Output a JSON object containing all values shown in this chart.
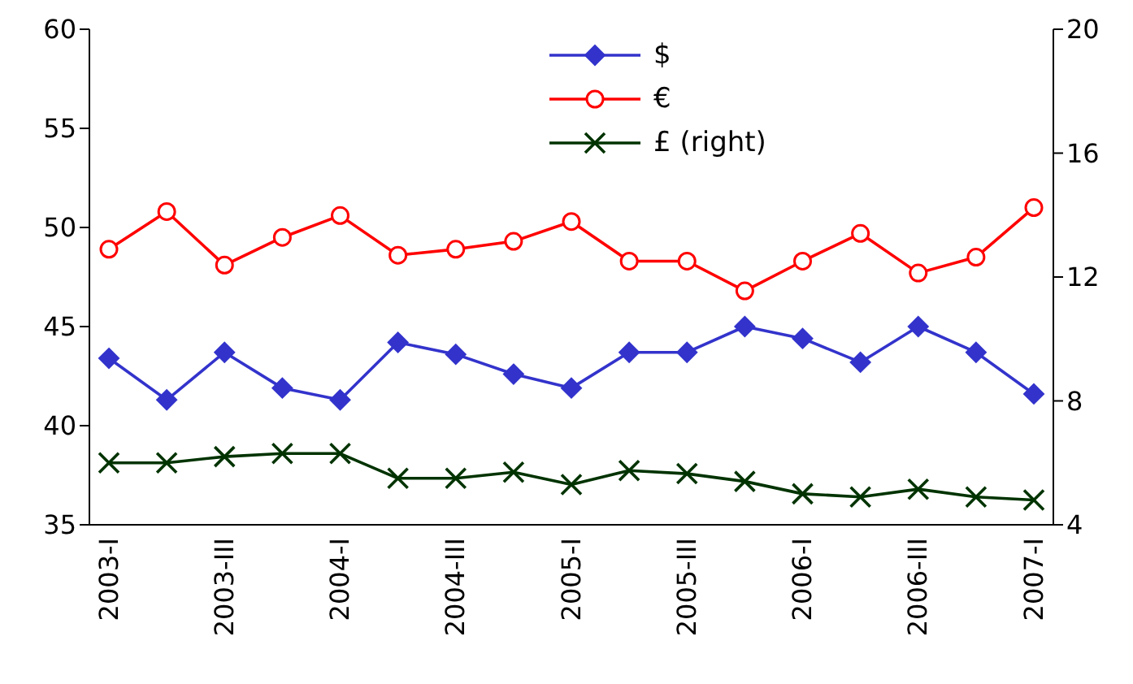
{
  "chart_data": {
    "type": "line",
    "categories": [
      "2003-I",
      null,
      "2003-III",
      null,
      "2004-I",
      null,
      "2004-III",
      null,
      "2005-I",
      null,
      "2005-III",
      null,
      "2006-I",
      null,
      "2006-III",
      null,
      "2007-I"
    ],
    "series": [
      {
        "name": "$",
        "color": "#3333cc",
        "marker": "diamond",
        "values": [
          43.4,
          41.3,
          43.7,
          41.9,
          41.3,
          44.2,
          43.6,
          42.6,
          41.9,
          43.7,
          43.7,
          45.0,
          44.4,
          43.2,
          45.0,
          43.7,
          41.6
        ]
      },
      {
        "name": "€",
        "color": "#ff0000",
        "marker": "circle",
        "values": [
          48.9,
          50.8,
          48.1,
          49.5,
          50.6,
          48.6,
          48.9,
          49.3,
          50.3,
          48.3,
          48.3,
          46.8,
          48.3,
          49.7,
          47.7,
          48.5,
          51.0
        ]
      },
      {
        "name": "£ (right)",
        "color": "#003300",
        "marker": "cross",
        "axis": "y2",
        "values": [
          6.0,
          6.0,
          6.2,
          6.3,
          6.3,
          5.5,
          5.5,
          5.7,
          5.3,
          5.75,
          5.65,
          5.4,
          5.0,
          4.9,
          5.15,
          4.9,
          4.8
        ]
      }
    ],
    "ylim": [
      35,
      60
    ],
    "yticks": [
      35,
      40,
      45,
      50,
      55,
      60
    ],
    "y2lim": [
      4,
      20
    ],
    "y2ticks": [
      4,
      8,
      12,
      16,
      20
    ],
    "grid": false,
    "legend": "top",
    "line_style": "solid"
  }
}
